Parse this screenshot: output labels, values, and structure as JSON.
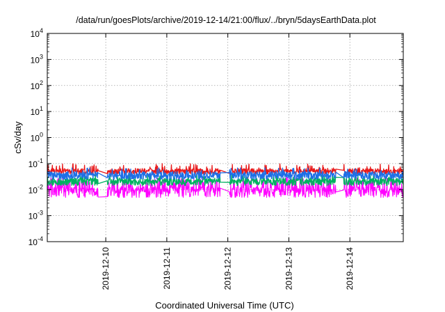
{
  "chart_data": {
    "type": "line",
    "title": "/data/run/goesPlots/archive/2019-12-14/21:00/flux/../bryn/5daysEarthData.plot",
    "xlabel": "Coordinated Universal Time (UTC)",
    "ylabel": "cSv/day",
    "y_scale": "log",
    "ylim": [
      0.0001,
      10000
    ],
    "y_ticks": [
      {
        "base": "10",
        "exp": "-4",
        "value": 0.0001
      },
      {
        "base": "10",
        "exp": "-3",
        "value": 0.001
      },
      {
        "base": "10",
        "exp": "-2",
        "value": 0.01
      },
      {
        "base": "10",
        "exp": "-1",
        "value": 0.1
      },
      {
        "base": "10",
        "exp": "0",
        "value": 1
      },
      {
        "base": "10",
        "exp": "1",
        "value": 10
      },
      {
        "base": "10",
        "exp": "2",
        "value": 100
      },
      {
        "base": "10",
        "exp": "3",
        "value": 1000
      },
      {
        "base": "10",
        "exp": "4",
        "value": 10000
      }
    ],
    "xlim": [
      "2019-12-09T01:00",
      "2019-12-14T21:00"
    ],
    "x_ticks": [
      "2019-12-10",
      "2019-12-11",
      "2019-12-12",
      "2019-12-13",
      "2019-12-14"
    ],
    "grid": true,
    "legend": "none",
    "series": [
      {
        "color": "#e8191a",
        "typical_value": 0.05,
        "range": [
          0.04,
          0.1
        ]
      },
      {
        "color": "#00b060",
        "typical_value": 0.02,
        "range": [
          0.012,
          0.04
        ]
      },
      {
        "color": "#1e6fe6",
        "typical_value": 0.035,
        "range": [
          0.02,
          0.07
        ]
      },
      {
        "color": "#ff00ff",
        "typical_value": 0.008,
        "range": [
          0.005,
          0.03
        ]
      }
    ],
    "gaps": [
      {
        "start": "2019-12-09T21:00",
        "end": "2019-12-10T00:30"
      },
      {
        "start": "2019-12-11T21:00",
        "end": "2019-12-12T00:30"
      },
      {
        "start": "2019-12-13T18:30",
        "end": "2019-12-13T21:30"
      }
    ]
  }
}
